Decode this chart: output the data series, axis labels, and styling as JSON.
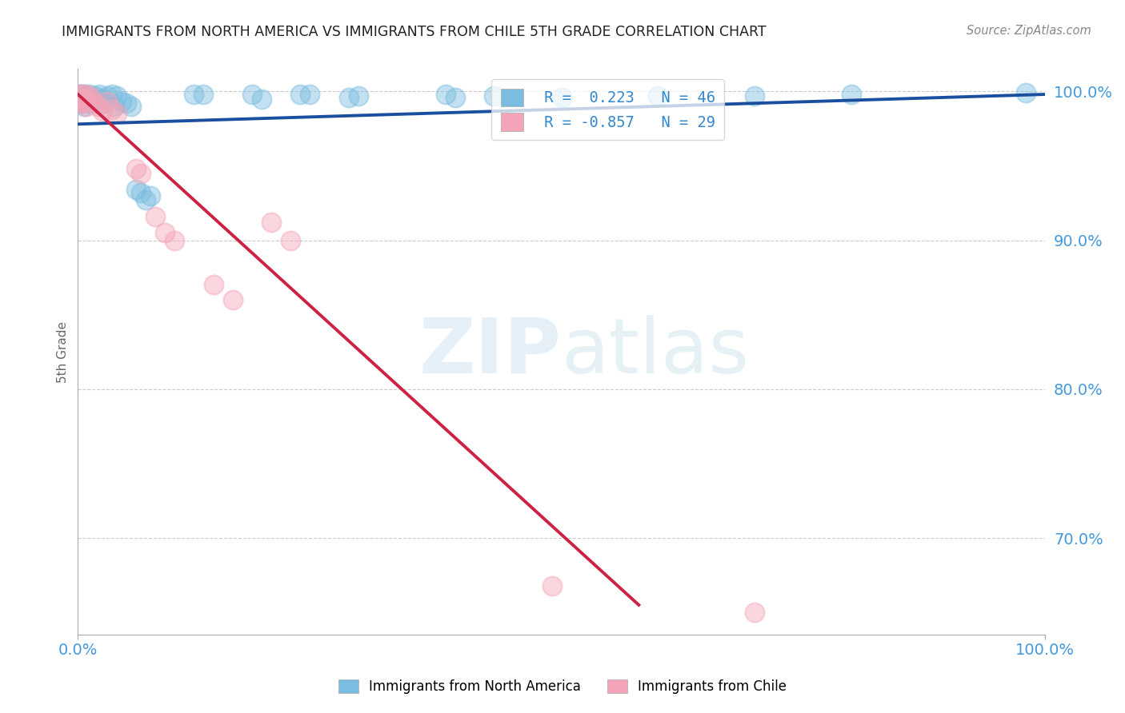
{
  "title": "IMMIGRANTS FROM NORTH AMERICA VS IMMIGRANTS FROM CHILE 5TH GRADE CORRELATION CHART",
  "source": "Source: ZipAtlas.com",
  "ylabel": "5th Grade",
  "watermark": "ZIPatlas",
  "legend_label_blue": "Immigrants from North America",
  "legend_label_pink": "Immigrants from Chile",
  "R_blue": 0.223,
  "N_blue": 46,
  "R_pink": -0.857,
  "N_pink": 29,
  "blue_color": "#7bbde0",
  "pink_color": "#f4a4b8",
  "blue_line_color": "#1a4fa0",
  "pink_line_color": "#cc2244",
  "blue_scatter": [
    [
      0.001,
      0.998
    ],
    [
      0.002,
      0.995
    ],
    [
      0.003,
      0.992
    ],
    [
      0.004,
      0.998
    ],
    [
      0.005,
      0.995
    ],
    [
      0.006,
      0.99
    ],
    [
      0.007,
      0.998
    ],
    [
      0.008,
      0.993
    ],
    [
      0.009,
      0.997
    ],
    [
      0.01,
      0.995
    ],
    [
      0.011,
      0.992
    ],
    [
      0.012,
      0.998
    ],
    [
      0.013,
      0.995
    ],
    [
      0.015,
      0.993
    ],
    [
      0.018,
      0.997
    ],
    [
      0.02,
      0.995
    ],
    [
      0.022,
      0.998
    ],
    [
      0.025,
      0.995
    ],
    [
      0.028,
      0.992
    ],
    [
      0.03,
      0.997
    ],
    [
      0.035,
      0.998
    ],
    [
      0.038,
      0.99
    ],
    [
      0.04,
      0.997
    ],
    [
      0.045,
      0.993
    ],
    [
      0.05,
      0.992
    ],
    [
      0.055,
      0.99
    ],
    [
      0.06,
      0.934
    ],
    [
      0.065,
      0.932
    ],
    [
      0.07,
      0.927
    ],
    [
      0.075,
      0.93
    ],
    [
      0.12,
      0.998
    ],
    [
      0.13,
      0.998
    ],
    [
      0.18,
      0.998
    ],
    [
      0.19,
      0.995
    ],
    [
      0.23,
      0.998
    ],
    [
      0.24,
      0.998
    ],
    [
      0.28,
      0.996
    ],
    [
      0.29,
      0.997
    ],
    [
      0.38,
      0.998
    ],
    [
      0.39,
      0.996
    ],
    [
      0.43,
      0.997
    ],
    [
      0.5,
      0.996
    ],
    [
      0.6,
      0.997
    ],
    [
      0.7,
      0.997
    ],
    [
      0.8,
      0.998
    ],
    [
      0.98,
      0.999
    ]
  ],
  "pink_scatter": [
    [
      0.001,
      0.998
    ],
    [
      0.002,
      0.995
    ],
    [
      0.003,
      0.992
    ],
    [
      0.004,
      0.998
    ],
    [
      0.005,
      0.995
    ],
    [
      0.006,
      0.993
    ],
    [
      0.007,
      0.998
    ],
    [
      0.008,
      0.995
    ],
    [
      0.009,
      0.99
    ],
    [
      0.01,
      0.993
    ],
    [
      0.012,
      0.997
    ],
    [
      0.015,
      0.995
    ],
    [
      0.018,
      0.992
    ],
    [
      0.02,
      0.99
    ],
    [
      0.025,
      0.987
    ],
    [
      0.03,
      0.993
    ],
    [
      0.035,
      0.988
    ],
    [
      0.04,
      0.985
    ],
    [
      0.06,
      0.948
    ],
    [
      0.065,
      0.945
    ],
    [
      0.08,
      0.916
    ],
    [
      0.09,
      0.905
    ],
    [
      0.1,
      0.9
    ],
    [
      0.14,
      0.87
    ],
    [
      0.16,
      0.86
    ],
    [
      0.2,
      0.912
    ],
    [
      0.22,
      0.9
    ],
    [
      0.49,
      0.668
    ],
    [
      0.7,
      0.65
    ]
  ],
  "xlim": [
    0.0,
    1.0
  ],
  "ylim": [
    0.635,
    1.015
  ],
  "ytick_values": [
    1.0,
    0.9,
    0.8,
    0.7
  ],
  "blue_line_x": [
    0.0,
    1.0
  ],
  "blue_line_y": [
    0.978,
    0.998
  ],
  "pink_line_x": [
    0.0,
    0.58
  ],
  "pink_line_y": [
    0.998,
    0.655
  ],
  "figsize": [
    14.06,
    8.92
  ],
  "dpi": 100
}
